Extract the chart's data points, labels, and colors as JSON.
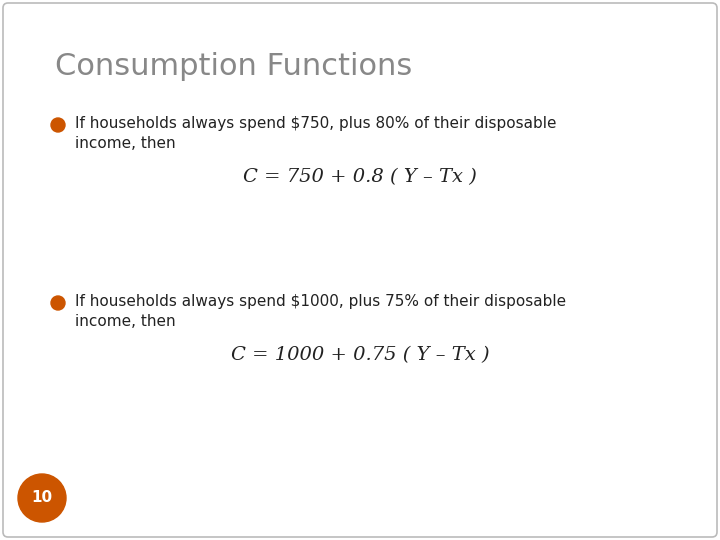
{
  "title": "Consumption Functions",
  "title_color": "#888888",
  "title_fontsize": 22,
  "bullet_color": "#CC5500",
  "bullet1_text_line1": "If households always spend $750, plus 80% of their disposable",
  "bullet1_text_line2": "income, then",
  "bullet1_formula": "C = 750 + 0.8 ( Y – Tx )",
  "bullet2_text_line1": "If households always spend $1000, plus 75% of their disposable",
  "bullet2_text_line2": "income, then",
  "bullet2_formula": "C = 1000 + 0.75 ( Y – Tx )",
  "text_color": "#222222",
  "text_fontsize": 11,
  "formula_fontsize": 14,
  "page_number": "10",
  "page_num_color": "#CC5500",
  "page_num_text_color": "#ffffff",
  "background_color": "#ffffff",
  "border_color": "#bbbbbb"
}
